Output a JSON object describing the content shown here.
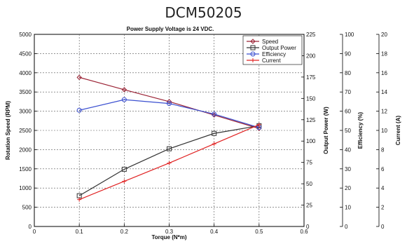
{
  "title": "DCM50205",
  "chart_data": {
    "type": "line",
    "title": "Power Supply Voltage is 24 VDC.",
    "xlabel": "Torque (N*m)",
    "x": [
      0.1,
      0.2,
      0.3,
      0.4,
      0.5
    ],
    "xlim": [
      0,
      0.6
    ],
    "x_ticks": [
      "0",
      "0.1",
      "0.2",
      "0.3",
      "0.4",
      "0.5",
      "0.6"
    ],
    "grid": true,
    "legend_position": "top-right",
    "axes": [
      {
        "id": "speed",
        "label": "Rotation Speed (RPM)",
        "side": "left",
        "range": [
          0,
          5000
        ],
        "ticks": [
          "0",
          "500",
          "1000",
          "1500",
          "2000",
          "2500",
          "3000",
          "3500",
          "4000",
          "4500",
          "5000"
        ]
      },
      {
        "id": "power",
        "label": "Output Power (W)",
        "side": "right",
        "range": [
          0,
          225
        ],
        "ticks": [
          "0",
          "25",
          "50",
          "75",
          "100",
          "125",
          "150",
          "175",
          "200",
          "225"
        ]
      },
      {
        "id": "eff",
        "label": "Efficiency (%)",
        "side": "right",
        "range": [
          0,
          100
        ],
        "ticks": [
          "0",
          "10",
          "20",
          "30",
          "40",
          "50",
          "60",
          "70",
          "80",
          "90",
          "100"
        ]
      },
      {
        "id": "current",
        "label": "Current (A)",
        "side": "right",
        "range": [
          0,
          20
        ],
        "ticks": [
          "0",
          "2",
          "4",
          "6",
          "8",
          "10",
          "12",
          "14",
          "16",
          "18",
          "20"
        ]
      }
    ],
    "series": [
      {
        "name": "Speed",
        "axis": "speed",
        "color": "#9b2335",
        "marker": "diamond",
        "values": [
          3880,
          3560,
          3250,
          2900,
          2550
        ]
      },
      {
        "name": "Output Power",
        "axis": "power",
        "color": "#333333",
        "marker": "square",
        "values": [
          36,
          67,
          91,
          109,
          118
        ]
      },
      {
        "name": "Efficiency",
        "axis": "eff",
        "color": "#3a4fd0",
        "marker": "circle",
        "values": [
          60.5,
          66,
          64,
          58.5,
          51.5
        ]
      },
      {
        "name": "Current",
        "axis": "current",
        "color": "#e02020",
        "marker": "plus",
        "values": [
          2.8,
          4.7,
          6.6,
          8.6,
          10.6
        ]
      }
    ]
  }
}
